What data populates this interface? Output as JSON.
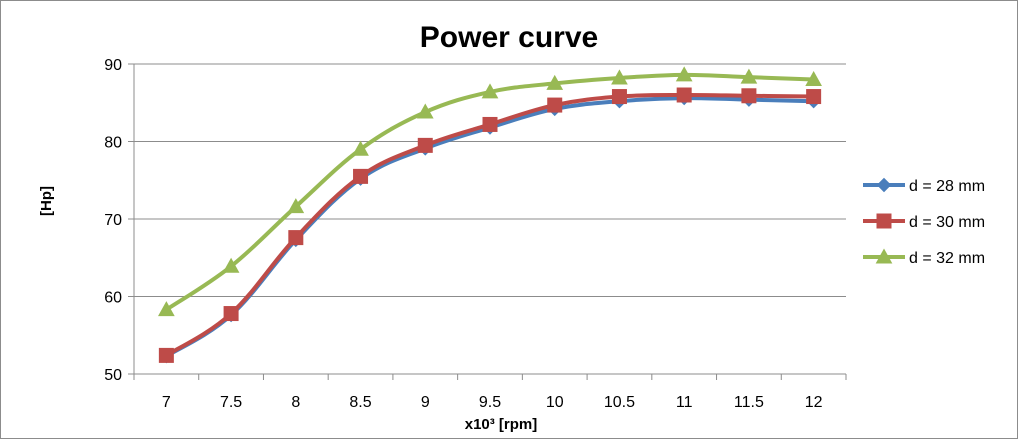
{
  "chart_data": {
    "type": "line",
    "title": "Power curve",
    "xlabel": "x10³ [rpm]",
    "ylabel": "[Hp]",
    "categories": [
      "7",
      "7.5",
      "8",
      "8.5",
      "9",
      "9.5",
      "10",
      "10.5",
      "11",
      "11.5",
      "12"
    ],
    "ylim": [
      50,
      90
    ],
    "yticks": [
      50,
      60,
      70,
      80,
      90
    ],
    "grid": true,
    "legend_position": "right",
    "series": [
      {
        "name": "d = 28 mm",
        "color": "#4a7ebb",
        "marker": "diamond",
        "values": [
          52.3,
          57.6,
          67.3,
          75.2,
          79.1,
          81.8,
          84.2,
          85.2,
          85.6,
          85.4,
          85.2
        ]
      },
      {
        "name": "d = 30 mm",
        "color": "#be4b48",
        "marker": "square",
        "values": [
          52.4,
          57.8,
          67.6,
          75.5,
          79.5,
          82.2,
          84.7,
          85.8,
          86.0,
          85.9,
          85.8
        ]
      },
      {
        "name": "d = 32 mm",
        "color": "#98b954",
        "marker": "triangle",
        "values": [
          58.3,
          63.9,
          71.6,
          79.0,
          83.8,
          86.4,
          87.5,
          88.2,
          88.6,
          88.3,
          88.0
        ]
      }
    ]
  }
}
